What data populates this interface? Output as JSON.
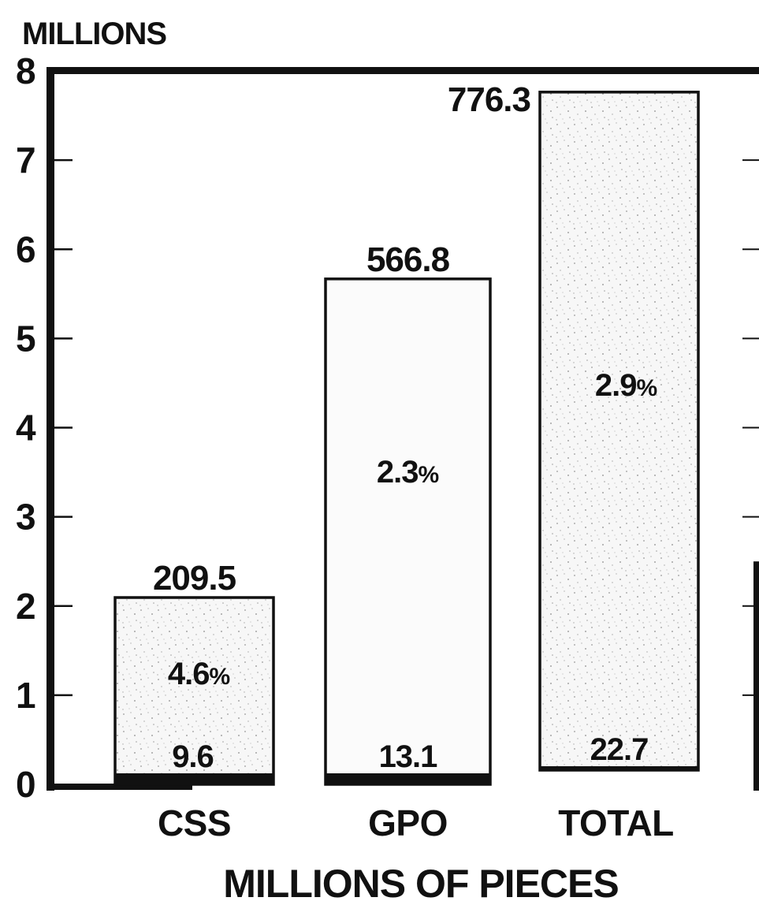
{
  "chart_data": {
    "type": "bar",
    "title": "",
    "unit_label": "MILLIONS",
    "xlabel": "MILLIONS OF PIECES",
    "ylabel": "",
    "ylim": [
      0,
      8
    ],
    "yticks": [
      "0",
      "1",
      "2",
      "3",
      "4",
      "5",
      "6",
      "7",
      "8"
    ],
    "categories": [
      "CSS",
      "GPO",
      "TOTAL"
    ],
    "series": [
      {
        "values": [
          9.6,
          13.1,
          22.7
        ],
        "labels": [
          "9.6",
          "13.1",
          "22.7"
        ],
        "color": "#111111"
      },
      {
        "values": [
          209.5,
          566.8,
          776.3
        ],
        "labels": [
          "209.5",
          "566.8",
          "776.3"
        ],
        "color": "#f4f4f4"
      }
    ],
    "percent_labels": [
      {
        "value": "4.6",
        "sign": "%"
      },
      {
        "value": "2.3",
        "sign": "%"
      },
      {
        "value": "2.9",
        "sign": "%"
      }
    ],
    "grid": false
  }
}
